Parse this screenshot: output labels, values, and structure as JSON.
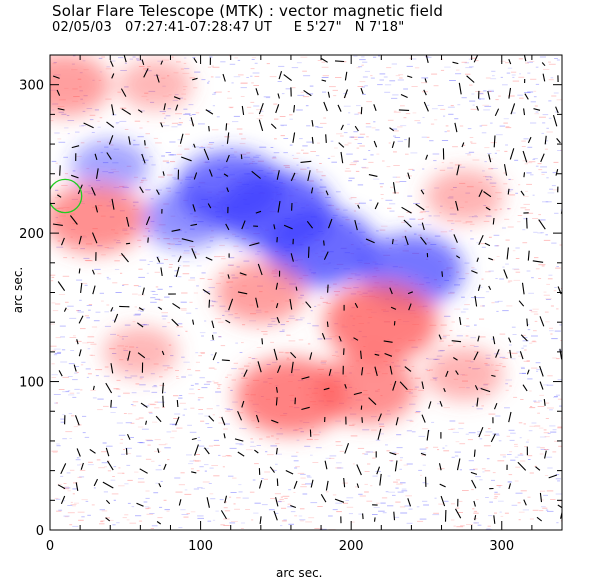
{
  "header": {
    "title": "Solar Flare Telescope (MTK) : vector magnetic field",
    "subtitle": "02/05/03   07:27:41-07:28:47 UT     E 5'27\"   N 7'18\""
  },
  "chart_data": {
    "type": "heatmap",
    "description_kind": "vector magnetogram",
    "xlabel": "arc sec.",
    "ylabel": "arc sec.",
    "xlim": [
      0,
      340
    ],
    "ylim": [
      0,
      320
    ],
    "xticks": [
      0,
      100,
      200,
      300
    ],
    "yticks": [
      0,
      100,
      200,
      300
    ],
    "colors": {
      "positive": "#ff5a5a",
      "negative": "#3c3cff",
      "vector": "#000000",
      "circle": "#22cc22"
    },
    "polarity_regions": [
      {
        "polarity": "negative",
        "x": 150,
        "y": 215,
        "strength": 0.9
      },
      {
        "polarity": "negative",
        "x": 120,
        "y": 230,
        "strength": 0.8
      },
      {
        "polarity": "negative",
        "x": 180,
        "y": 190,
        "strength": 0.85
      },
      {
        "polarity": "negative",
        "x": 240,
        "y": 175,
        "strength": 0.75
      },
      {
        "polarity": "negative",
        "x": 90,
        "y": 210,
        "strength": 0.5
      },
      {
        "polarity": "negative",
        "x": 40,
        "y": 245,
        "strength": 0.35
      },
      {
        "polarity": "positive",
        "x": 220,
        "y": 140,
        "strength": 0.9
      },
      {
        "polarity": "positive",
        "x": 160,
        "y": 90,
        "strength": 0.85
      },
      {
        "polarity": "positive",
        "x": 210,
        "y": 95,
        "strength": 0.7
      },
      {
        "polarity": "positive",
        "x": 140,
        "y": 160,
        "strength": 0.55
      },
      {
        "polarity": "positive",
        "x": 30,
        "y": 210,
        "strength": 0.7
      },
      {
        "polarity": "positive",
        "x": 10,
        "y": 300,
        "strength": 0.55
      },
      {
        "polarity": "positive",
        "x": 60,
        "y": 120,
        "strength": 0.3
      },
      {
        "polarity": "positive",
        "x": 275,
        "y": 105,
        "strength": 0.35
      },
      {
        "polarity": "positive",
        "x": 275,
        "y": 225,
        "strength": 0.35
      },
      {
        "polarity": "positive",
        "x": 70,
        "y": 300,
        "strength": 0.3
      }
    ],
    "marked_circle": {
      "x": 10,
      "y": 225,
      "radius_arcsec": 10
    }
  }
}
